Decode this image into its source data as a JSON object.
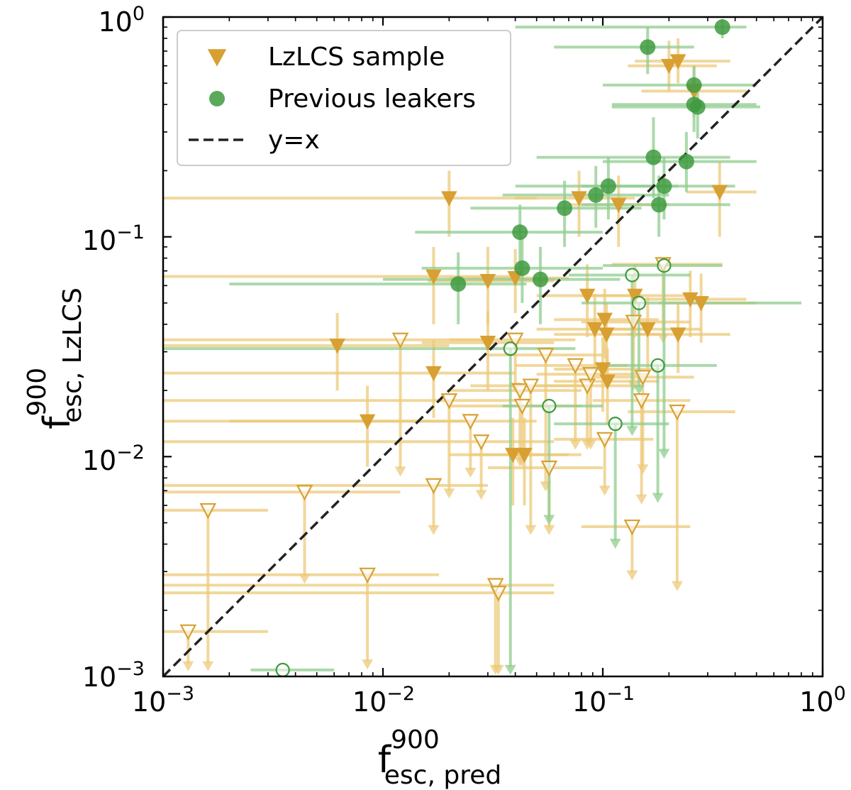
{
  "chart_data": {
    "type": "scatter",
    "xscale": "log",
    "yscale": "log",
    "xlim": [
      0.001,
      1
    ],
    "ylim": [
      0.001,
      1
    ],
    "xlabel": {
      "base": "f",
      "sup": "900",
      "sub": "esc, pred"
    },
    "ylabel": {
      "base": "f",
      "sup": "900",
      "sub": "esc, LzLCS"
    },
    "ticks": [
      {
        "value": 0.001,
        "base": "10",
        "exp": "−3"
      },
      {
        "value": 0.01,
        "base": "10",
        "exp": "−2"
      },
      {
        "value": 0.1,
        "base": "10",
        "exp": "−1"
      },
      {
        "value": 1,
        "base": "10",
        "exp": "0"
      }
    ],
    "legend": {
      "position": "top-left",
      "entries": [
        {
          "label": "LzLCS sample",
          "marker": "triangle-down",
          "color": "#d8a032"
        },
        {
          "label": "Previous leakers",
          "marker": "circle",
          "color": "#3f9a3f"
        },
        {
          "label": "y=x",
          "marker": "dashed-line",
          "color": "#222222"
        }
      ]
    },
    "reference_line": {
      "label": "y=x",
      "from": [
        0.001,
        0.001
      ],
      "to": [
        1,
        1
      ]
    },
    "colors": {
      "lzlcs": "#d8a032",
      "lzlcs_err": "#ecc97a",
      "prev": "#3f9a3f",
      "prev_err": "#8fcc8f",
      "line": "#222222"
    },
    "series": [
      {
        "name": "LzLCS sample (detections)",
        "marker": "triangle-down-filled",
        "points": [
          {
            "x": 0.2,
            "y": 0.6,
            "xerr": [
              0.13,
              0.33
            ],
            "yerr": [
              0.46,
              0.78
            ]
          },
          {
            "x": 0.22,
            "y": 0.63,
            "xerr": [
              0.14,
              0.38
            ],
            "yerr": [
              0.5,
              0.8
            ]
          },
          {
            "x": 0.26,
            "y": 0.46,
            "xerr": [
              0.15,
              0.45
            ],
            "yerr": [
              0.35,
              0.6
            ]
          },
          {
            "x": 0.34,
            "y": 0.16,
            "xerr": [
              0.24,
              0.5
            ],
            "yerr": [
              0.1,
              0.22
            ]
          },
          {
            "x": 0.02,
            "y": 0.15,
            "xerr": [
              0.001,
              0.05
            ],
            "yerr": [
              0.1,
              0.2
            ]
          },
          {
            "x": 0.078,
            "y": 0.15,
            "xerr": [
              0.04,
              0.14
            ],
            "yerr": [
              0.1,
              0.2
            ]
          },
          {
            "x": 0.118,
            "y": 0.14,
            "xerr": [
              0.07,
              0.2
            ],
            "yerr": [
              0.09,
              0.19
            ]
          },
          {
            "x": 0.017,
            "y": 0.066,
            "xerr": [
              0.001,
              0.04
            ],
            "yerr": [
              0.04,
              0.09
            ]
          },
          {
            "x": 0.03,
            "y": 0.063,
            "xerr": [
              0.016,
              0.06
            ],
            "yerr": [
              0.04,
              0.09
            ]
          },
          {
            "x": 0.04,
            "y": 0.065,
            "xerr": [
              0.02,
              0.07
            ],
            "yerr": [
              0.045,
              0.088
            ]
          },
          {
            "x": 0.085,
            "y": 0.054,
            "xerr": [
              0.05,
              0.15
            ],
            "yerr": [
              0.035,
              0.075
            ]
          },
          {
            "x": 0.14,
            "y": 0.054,
            "xerr": [
              0.08,
              0.25
            ],
            "yerr": [
              0.035,
              0.075
            ]
          },
          {
            "x": 0.25,
            "y": 0.052,
            "xerr": [
              0.15,
              0.45
            ],
            "yerr": [
              0.035,
              0.07
            ]
          },
          {
            "x": 0.28,
            "y": 0.05,
            "xerr": [
              0.18,
              0.5
            ],
            "yerr": [
              0.033,
              0.068
            ]
          },
          {
            "x": 0.092,
            "y": 0.038,
            "xerr": [
              0.05,
              0.16
            ],
            "yerr": [
              0.025,
              0.055
            ]
          },
          {
            "x": 0.102,
            "y": 0.042,
            "xerr": [
              0.06,
              0.18
            ],
            "yerr": [
              0.028,
              0.058
            ]
          },
          {
            "x": 0.104,
            "y": 0.036,
            "xerr": [
              0.06,
              0.18
            ],
            "yerr": [
              0.024,
              0.05
            ]
          },
          {
            "x": 0.16,
            "y": 0.038,
            "xerr": [
              0.09,
              0.28
            ],
            "yerr": [
              0.025,
              0.053
            ]
          },
          {
            "x": 0.22,
            "y": 0.036,
            "xerr": [
              0.13,
              0.38
            ],
            "yerr": [
              0.024,
              0.05
            ]
          },
          {
            "x": 0.0062,
            "y": 0.032,
            "xerr": [
              0.001,
              0.02
            ],
            "yerr": [
              0.02,
              0.045
            ]
          },
          {
            "x": 0.03,
            "y": 0.033,
            "xerr": [
              0.015,
              0.06
            ],
            "yerr": [
              0.02,
              0.046
            ]
          },
          {
            "x": 0.017,
            "y": 0.024,
            "xerr": [
              0.001,
              0.04
            ],
            "yerr": [
              0.015,
              0.034
            ]
          },
          {
            "x": 0.1,
            "y": 0.025,
            "xerr": [
              0.06,
              0.18
            ],
            "yerr": [
              0.016,
              0.035
            ]
          },
          {
            "x": 0.105,
            "y": 0.022,
            "xerr": [
              0.06,
              0.18
            ],
            "yerr": [
              0.014,
              0.031
            ]
          },
          {
            "x": 0.0085,
            "y": 0.0145,
            "xerr": [
              0.002,
              0.025
            ],
            "yerr": [
              0.009,
              0.021
            ]
          },
          {
            "x": 0.039,
            "y": 0.0102,
            "xerr": [
              0.02,
              0.07
            ],
            "yerr": [
              0.006,
              0.015
            ]
          },
          {
            "x": 0.044,
            "y": 0.0102,
            "xerr": [
              0.025,
              0.08
            ],
            "yerr": [
              0.006,
              0.015
            ]
          }
        ]
      },
      {
        "name": "LzLCS sample (upper limits)",
        "marker": "triangle-down-open",
        "points": [
          {
            "x": 0.0013,
            "y": 0.0016,
            "xerr": [
              0.001,
              0.003
            ],
            "arrow_to": 0.00108
          },
          {
            "x": 0.0016,
            "y": 0.0057,
            "xerr": [
              0.001,
              0.003
            ],
            "arrow_to": 0.00108
          },
          {
            "x": 0.0044,
            "y": 0.0069,
            "xerr": [
              0.001,
              0.012
            ],
            "arrow_to": 0.0027
          },
          {
            "x": 0.0085,
            "y": 0.0029,
            "xerr": [
              0.001,
              0.018
            ],
            "arrow_to": 0.0011
          },
          {
            "x": 0.012,
            "y": 0.034,
            "xerr": [
              0.001,
              0.03
            ],
            "arrow_to": 0.0083
          },
          {
            "x": 0.017,
            "y": 0.0074,
            "xerr": [
              0.001,
              0.03
            ],
            "arrow_to": 0.0045
          },
          {
            "x": 0.02,
            "y": 0.018,
            "xerr": [
              0.001,
              0.04
            ],
            "arrow_to": 0.0066
          },
          {
            "x": 0.025,
            "y": 0.0145,
            "xerr": [
              0.001,
              0.05
            ],
            "arrow_to": 0.0082
          },
          {
            "x": 0.028,
            "y": 0.0117,
            "xerr": [
              0.001,
              0.06
            ],
            "arrow_to": 0.0065
          },
          {
            "x": 0.0325,
            "y": 0.0026,
            "xerr": [
              0.001,
              0.06
            ],
            "arrow_to": 0.00104
          },
          {
            "x": 0.0335,
            "y": 0.0024,
            "xerr": [
              0.001,
              0.06
            ],
            "arrow_to": 0.00104
          },
          {
            "x": 0.04,
            "y": 0.034,
            "xerr": [
              0.02,
              0.075
            ],
            "arrow_to": 0.02
          },
          {
            "x": 0.042,
            "y": 0.02,
            "xerr": [
              0.02,
              0.08
            ],
            "arrow_to": 0.0092
          },
          {
            "x": 0.043,
            "y": 0.017,
            "xerr": [
              0.02,
              0.08
            ],
            "arrow_to": 0.0092
          },
          {
            "x": 0.047,
            "y": 0.021,
            "xerr": [
              0.025,
              0.09
            ],
            "arrow_to": 0.0045
          },
          {
            "x": 0.055,
            "y": 0.029,
            "xerr": [
              0.03,
              0.1
            ],
            "arrow_to": 0.0071
          },
          {
            "x": 0.057,
            "y": 0.0089,
            "xerr": [
              0.03,
              0.1
            ],
            "arrow_to": 0.0045
          },
          {
            "x": 0.075,
            "y": 0.026,
            "xerr": [
              0.04,
              0.13
            ],
            "arrow_to": 0.011
          },
          {
            "x": 0.085,
            "y": 0.021,
            "xerr": [
              0.05,
              0.15
            ],
            "arrow_to": 0.011
          },
          {
            "x": 0.088,
            "y": 0.0237,
            "xerr": [
              0.05,
              0.16
            ],
            "arrow_to": 0.011
          },
          {
            "x": 0.102,
            "y": 0.012,
            "xerr": [
              0.06,
              0.17
            ],
            "arrow_to": 0.0068
          },
          {
            "x": 0.136,
            "y": 0.0048,
            "xerr": [
              0.08,
              0.25
            ],
            "arrow_to": 0.0028
          },
          {
            "x": 0.138,
            "y": 0.041,
            "xerr": [
              0.08,
              0.25
            ],
            "arrow_to": 0.0204
          },
          {
            "x": 0.15,
            "y": 0.018,
            "xerr": [
              0.09,
              0.25
            ],
            "arrow_to": 0.0062
          },
          {
            "x": 0.152,
            "y": 0.023,
            "xerr": [
              0.09,
              0.26
            ],
            "arrow_to": 0.0085
          },
          {
            "x": 0.218,
            "y": 0.016,
            "xerr": [
              0.13,
              0.4
            ],
            "arrow_to": 0.0025
          },
          {
            "x": 0.188,
            "y": 0.075,
            "xerr": [
              0.11,
              0.35
            ],
            "arrow_to": 0.0335
          }
        ]
      },
      {
        "name": "Previous leakers (detections)",
        "marker": "circle-filled",
        "points": [
          {
            "x": 0.35,
            "y": 0.9,
            "xerr": [
              0.04,
              0.45
            ],
            "yerr": [
              0.8,
              0.98
            ]
          },
          {
            "x": 0.16,
            "y": 0.73,
            "xerr": [
              0.06,
              0.26
            ],
            "yerr": [
              0.55,
              0.9
            ]
          },
          {
            "x": 0.26,
            "y": 0.49,
            "xerr": [
              0.1,
              0.5
            ],
            "yerr": [
              0.36,
              0.6
            ]
          },
          {
            "x": 0.26,
            "y": 0.4,
            "xerr": [
              0.11,
              0.5
            ],
            "yerr": [
              0.3,
              0.5
            ]
          },
          {
            "x": 0.27,
            "y": 0.39,
            "xerr": [
              0.11,
              0.52
            ],
            "yerr": [
              0.28,
              0.5
            ]
          },
          {
            "x": 0.17,
            "y": 0.23,
            "xerr": [
              0.05,
              0.38
            ],
            "yerr": [
              0.15,
              0.35
            ]
          },
          {
            "x": 0.24,
            "y": 0.22,
            "xerr": [
              0.1,
              0.5
            ],
            "yerr": [
              0.16,
              0.3
            ]
          },
          {
            "x": 0.19,
            "y": 0.17,
            "xerr": [
              0.08,
              0.4
            ],
            "yerr": [
              0.12,
              0.23
            ]
          },
          {
            "x": 0.18,
            "y": 0.14,
            "xerr": [
              0.08,
              0.38
            ],
            "yerr": [
              0.1,
              0.19
            ]
          },
          {
            "x": 0.106,
            "y": 0.17,
            "xerr": [
              0.04,
              0.22
            ],
            "yerr": [
              0.12,
              0.23
            ]
          },
          {
            "x": 0.093,
            "y": 0.155,
            "xerr": [
              0.035,
              0.2
            ],
            "yerr": [
              0.11,
              0.21
            ]
          },
          {
            "x": 0.067,
            "y": 0.135,
            "xerr": [
              0.025,
              0.15
            ],
            "yerr": [
              0.09,
              0.18
            ]
          },
          {
            "x": 0.042,
            "y": 0.105,
            "xerr": [
              0.014,
              0.1
            ],
            "yerr": [
              0.07,
              0.14
            ]
          },
          {
            "x": 0.043,
            "y": 0.072,
            "xerr": [
              0.015,
              0.1
            ],
            "yerr": [
              0.05,
              0.1
            ]
          },
          {
            "x": 0.052,
            "y": 0.064,
            "xerr": [
              0.01,
              0.12
            ],
            "yerr": [
              0.04,
              0.09
            ]
          },
          {
            "x": 0.022,
            "y": 0.061,
            "xerr": [
              0.002,
              0.045
            ],
            "yerr": [
              0.04,
              0.085
            ]
          }
        ]
      },
      {
        "name": "Previous leakers (upper limits)",
        "marker": "circle-open",
        "points": [
          {
            "x": 0.0035,
            "y": 0.00107,
            "xerr": [
              0.0025,
              0.006
            ],
            "arrow_to": 0.00107
          },
          {
            "x": 0.038,
            "y": 0.031,
            "xerr": [
              0.001,
              0.075
            ],
            "arrow_to": 0.00104
          },
          {
            "x": 0.057,
            "y": 0.017,
            "xerr": [
              0.035,
              0.1
            ],
            "arrow_to": 0.005
          },
          {
            "x": 0.114,
            "y": 0.0141,
            "xerr": [
              0.06,
              0.2
            ],
            "arrow_to": 0.0039
          },
          {
            "x": 0.136,
            "y": 0.067,
            "xerr": [
              0.07,
              0.25
            ],
            "arrow_to": 0.0127
          },
          {
            "x": 0.146,
            "y": 0.05,
            "xerr": [
              0.08,
              0.8
            ],
            "arrow_to": 0.0195
          },
          {
            "x": 0.178,
            "y": 0.026,
            "xerr": [
              0.1,
              0.33
            ],
            "arrow_to": 0.0063
          },
          {
            "x": 0.19,
            "y": 0.074,
            "xerr": [
              0.1,
              0.35
            ],
            "arrow_to": 0.01
          }
        ]
      }
    ]
  }
}
